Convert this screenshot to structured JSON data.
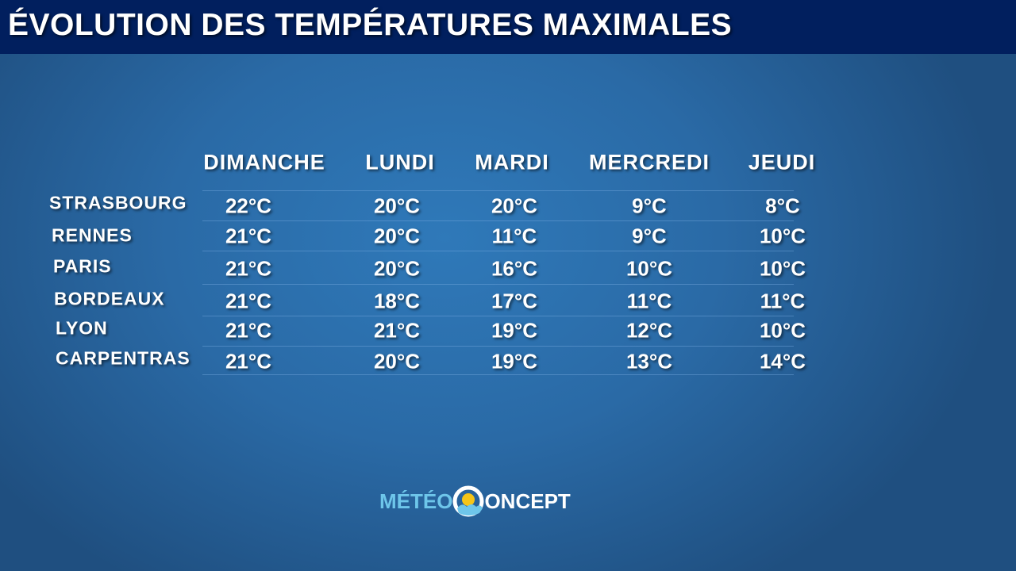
{
  "header": {
    "title": "ÉVOLUTION DES TEMPÉRATURES MAXIMALES"
  },
  "table": {
    "columns": [
      "DIMANCHE",
      "LUNDI",
      "MARDI",
      "MERCREDI",
      "JEUDI"
    ],
    "rows": [
      {
        "city": "STRASBOURG",
        "cells": [
          "22°C",
          "20°C",
          "20°C",
          "9°C",
          "8°C"
        ]
      },
      {
        "city": "RENNES",
        "cells": [
          "21°C",
          "20°C",
          "11°C",
          "9°C",
          "10°C"
        ]
      },
      {
        "city": "PARIS",
        "cells": [
          "21°C",
          "20°C",
          "16°C",
          "10°C",
          "10°C"
        ]
      },
      {
        "city": "BORDEAUX",
        "cells": [
          "21°C",
          "18°C",
          "17°C",
          "11°C",
          "11°C"
        ]
      },
      {
        "city": "LYON",
        "cells": [
          "21°C",
          "21°C",
          "19°C",
          "12°C",
          "10°C"
        ]
      },
      {
        "city": "CARPENTRAS",
        "cells": [
          "21°C",
          "20°C",
          "19°C",
          "13°C",
          "14°C"
        ]
      }
    ]
  },
  "logo": {
    "left": "MÉTÉO",
    "right": "ONCEPT"
  }
}
